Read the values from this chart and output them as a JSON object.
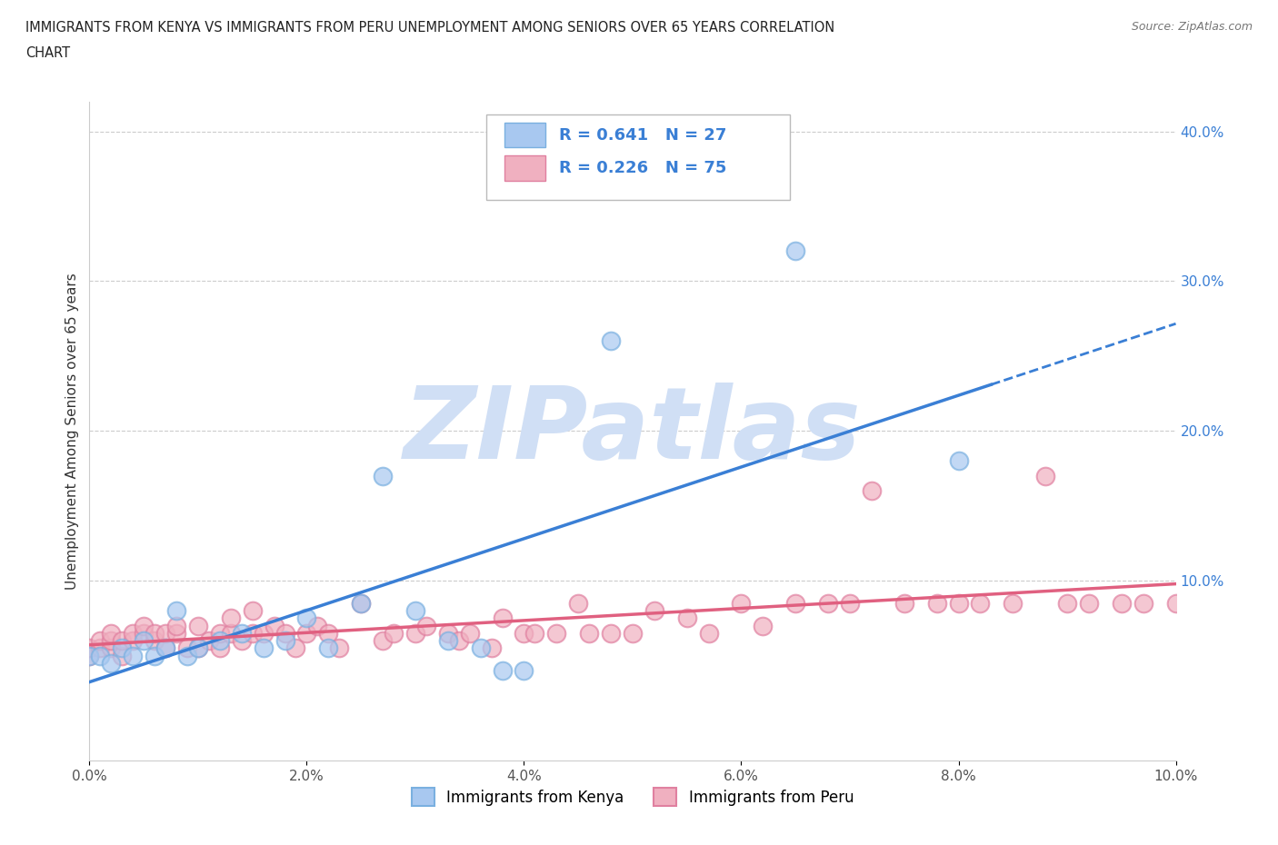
{
  "title_line1": "IMMIGRANTS FROM KENYA VS IMMIGRANTS FROM PERU UNEMPLOYMENT AMONG SENIORS OVER 65 YEARS CORRELATION",
  "title_line2": "CHART",
  "source_text": "Source: ZipAtlas.com",
  "ylabel": "Unemployment Among Seniors over 65 years",
  "xlim": [
    0.0,
    0.1
  ],
  "ylim": [
    -0.02,
    0.42
  ],
  "xticks": [
    0.0,
    0.02,
    0.04,
    0.06,
    0.08,
    0.1
  ],
  "xtick_labels": [
    "0.0%",
    "2.0%",
    "4.0%",
    "6.0%",
    "8.0%",
    "10.0%"
  ],
  "yticks_right": [
    0.1,
    0.2,
    0.3,
    0.4
  ],
  "ytick_labels_right": [
    "10.0%",
    "20.0%",
    "30.0%",
    "40.0%"
  ],
  "kenya_color": "#a8c8f0",
  "peru_color": "#f0b0c0",
  "kenya_edge_color": "#7ab0e0",
  "peru_edge_color": "#e080a0",
  "kenya_line_color": "#3a7fd5",
  "peru_line_color": "#e06080",
  "kenya_R": 0.641,
  "kenya_N": 27,
  "peru_R": 0.226,
  "peru_N": 75,
  "legend_text_color": "#3a7fd5",
  "watermark_color": "#d0dff5",
  "background_color": "#ffffff",
  "grid_color": "#cccccc",
  "kenya_scatter_x": [
    0.0,
    0.001,
    0.002,
    0.003,
    0.004,
    0.005,
    0.006,
    0.007,
    0.008,
    0.009,
    0.01,
    0.012,
    0.014,
    0.016,
    0.018,
    0.02,
    0.022,
    0.025,
    0.027,
    0.03,
    0.033,
    0.036,
    0.038,
    0.04,
    0.048,
    0.065,
    0.08
  ],
  "kenya_scatter_y": [
    0.05,
    0.05,
    0.045,
    0.055,
    0.05,
    0.06,
    0.05,
    0.055,
    0.08,
    0.05,
    0.055,
    0.06,
    0.065,
    0.055,
    0.06,
    0.075,
    0.055,
    0.085,
    0.17,
    0.08,
    0.06,
    0.055,
    0.04,
    0.04,
    0.26,
    0.32,
    0.18
  ],
  "peru_scatter_x": [
    0.0,
    0.0,
    0.001,
    0.001,
    0.002,
    0.002,
    0.002,
    0.003,
    0.003,
    0.004,
    0.004,
    0.005,
    0.005,
    0.006,
    0.006,
    0.007,
    0.007,
    0.008,
    0.008,
    0.009,
    0.01,
    0.01,
    0.011,
    0.012,
    0.012,
    0.013,
    0.013,
    0.014,
    0.015,
    0.015,
    0.016,
    0.017,
    0.018,
    0.019,
    0.02,
    0.021,
    0.022,
    0.023,
    0.025,
    0.027,
    0.028,
    0.03,
    0.031,
    0.033,
    0.034,
    0.035,
    0.037,
    0.038,
    0.04,
    0.041,
    0.043,
    0.045,
    0.046,
    0.048,
    0.05,
    0.052,
    0.055,
    0.057,
    0.06,
    0.062,
    0.065,
    0.068,
    0.07,
    0.072,
    0.075,
    0.078,
    0.08,
    0.082,
    0.085,
    0.088,
    0.09,
    0.092,
    0.095,
    0.097,
    0.1
  ],
  "peru_scatter_y": [
    0.05,
    0.055,
    0.055,
    0.06,
    0.055,
    0.06,
    0.065,
    0.05,
    0.06,
    0.06,
    0.065,
    0.065,
    0.07,
    0.06,
    0.065,
    0.055,
    0.065,
    0.065,
    0.07,
    0.055,
    0.055,
    0.07,
    0.06,
    0.055,
    0.065,
    0.065,
    0.075,
    0.06,
    0.08,
    0.065,
    0.065,
    0.07,
    0.065,
    0.055,
    0.065,
    0.07,
    0.065,
    0.055,
    0.085,
    0.06,
    0.065,
    0.065,
    0.07,
    0.065,
    0.06,
    0.065,
    0.055,
    0.075,
    0.065,
    0.065,
    0.065,
    0.085,
    0.065,
    0.065,
    0.065,
    0.08,
    0.075,
    0.065,
    0.085,
    0.07,
    0.085,
    0.085,
    0.085,
    0.16,
    0.085,
    0.085,
    0.085,
    0.085,
    0.085,
    0.17,
    0.085,
    0.085,
    0.085,
    0.085,
    0.085
  ]
}
